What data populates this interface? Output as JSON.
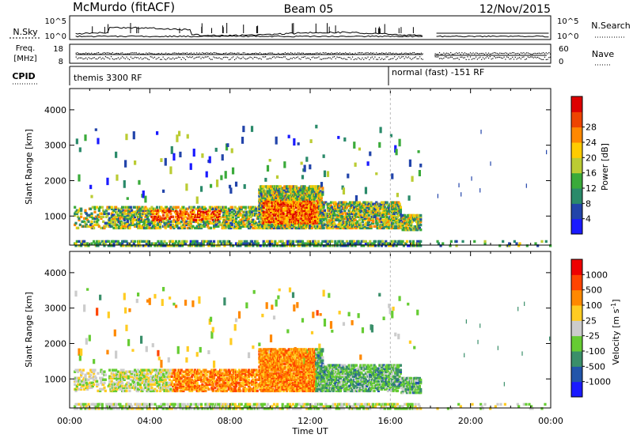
{
  "header": {
    "station": "McMurdo (fitACF)",
    "beam": "Beam 05",
    "date": "12/Nov/2015"
  },
  "strips": {
    "nsky_label": "N.Sky",
    "nsky_ticks": [
      "10^5",
      "10^0"
    ],
    "nsearch_label": "N.Search",
    "nsearch_ticks": [
      "10^5",
      "10^0"
    ],
    "freq_label_1": "Freq.",
    "freq_label_2": "[MHz]",
    "freq_ticks": [
      "18",
      "8"
    ],
    "nave_label": "Nave",
    "nave_ticks": [
      "60",
      "0"
    ],
    "cpid_label": "CPID",
    "cpid_modes": [
      "themis 3300 RF",
      "normal (fast) -151 RF"
    ]
  },
  "chart_data": [
    {
      "type": "heatmap",
      "title": "",
      "xlabel": "Time UT",
      "ylabel": "Slant Range [km]",
      "xlim": [
        "00:00",
        "24:00"
      ],
      "ylim": [
        180,
        4600
      ],
      "x_ticks": [
        "00:00",
        "04:00",
        "08:00",
        "12:00",
        "16:00",
        "20:00",
        "00:00"
      ],
      "y_ticks": [
        1000,
        2000,
        3000,
        4000
      ],
      "colorbar": {
        "label": "Power [dB]",
        "ticks": [
          4,
          8,
          12,
          16,
          20,
          24,
          28
        ],
        "colors": [
          "#1a1aff",
          "#2244aa",
          "#2a8a6a",
          "#3aaa3a",
          "#bbcc33",
          "#ffcc00",
          "#ff8800",
          "#ee4400",
          "#dd0000"
        ]
      },
      "data_gap": [
        "17:30",
        "18:15"
      ],
      "features": [
        {
          "name": "main echo band",
          "time": [
            "01:00",
            "17:30"
          ],
          "range_km": [
            700,
            1600
          ],
          "power_db": [
            10,
            28
          ]
        },
        {
          "name": "intense patch",
          "time": [
            "09:30",
            "12:30"
          ],
          "range_km": [
            800,
            2000
          ],
          "power_db": [
            20,
            30
          ]
        },
        {
          "name": "upper sparse echoes",
          "time": [
            "01:00",
            "16:00"
          ],
          "range_km": [
            2500,
            3600
          ],
          "power_db": [
            4,
            20
          ]
        }
      ]
    },
    {
      "type": "heatmap",
      "title": "",
      "xlabel": "Time UT",
      "ylabel": "Slant Range [km]",
      "xlim": [
        "00:00",
        "24:00"
      ],
      "ylim": [
        180,
        4600
      ],
      "x_ticks": [
        "00:00",
        "04:00",
        "08:00",
        "12:00",
        "16:00",
        "20:00",
        "00:00"
      ],
      "y_ticks": [
        1000,
        2000,
        3000,
        4000
      ],
      "colorbar": {
        "label": "Velocity [m s^-1]",
        "ticks": [
          "1000",
          "500",
          "100",
          "25",
          "-25",
          "-100",
          "-500",
          "-1000"
        ],
        "colors": [
          "#1a1aff",
          "#2255aa",
          "#3a8f6a",
          "#66cc33",
          "#cccccc",
          "#ffcc22",
          "#ff8800",
          "#ff4400",
          "#ee0000"
        ]
      },
      "data_gap": [
        "17:30",
        "18:15"
      ],
      "features": [
        {
          "name": "positive velocity band",
          "time": [
            "05:00",
            "12:00"
          ],
          "range_km": [
            700,
            1600
          ],
          "velocity": [
            100,
            500
          ]
        },
        {
          "name": "negative velocity echoes",
          "time": [
            "12:00",
            "17:30"
          ],
          "range_km": [
            700,
            1500
          ],
          "velocity": [
            -500,
            -25
          ]
        },
        {
          "name": "near-zero velocity",
          "time": [
            "01:00",
            "06:00"
          ],
          "range_km": [
            800,
            1200
          ],
          "velocity": [
            -25,
            100
          ]
        }
      ]
    }
  ]
}
